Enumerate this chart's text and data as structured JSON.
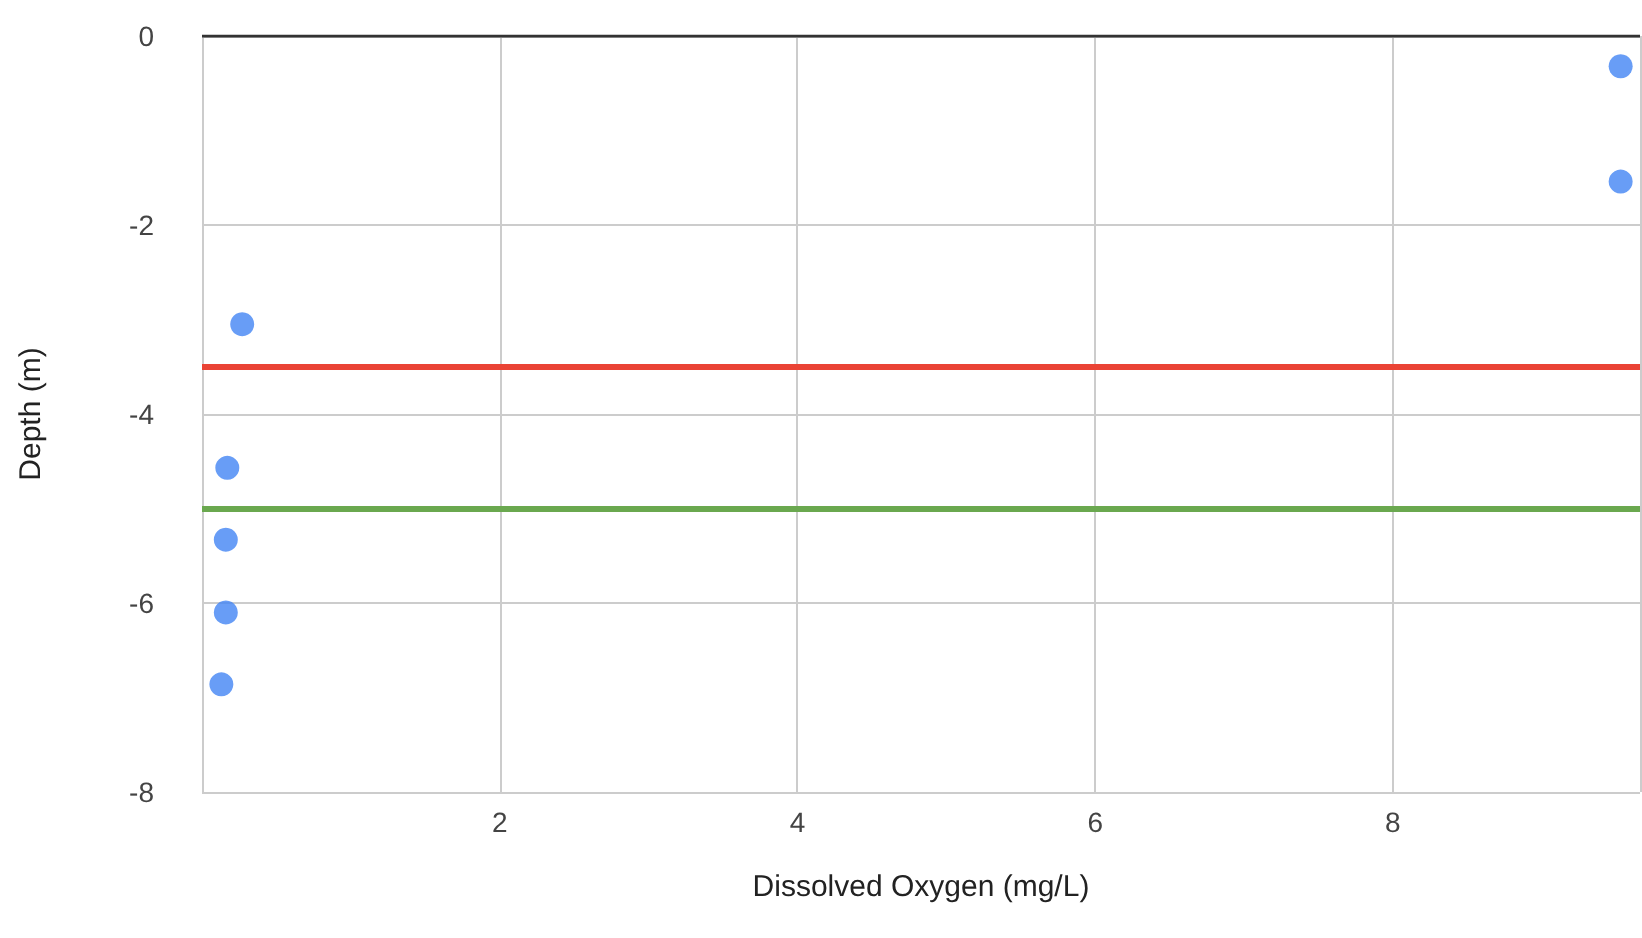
{
  "chart_data": {
    "type": "scatter",
    "xlabel": "Dissolved Oxygen (mg/L)",
    "ylabel": "Depth (m)",
    "x": [
      9.53,
      9.53,
      0.27,
      0.17,
      0.16,
      0.16,
      0.13
    ],
    "series": [
      {
        "color": "#4285f4",
        "values": [
          -0.32,
          -1.54,
          -3.05,
          -4.57,
          -5.33,
          -6.1,
          -6.86
        ]
      }
    ],
    "xlim": [
      0,
      9.66
    ],
    "xticks": [
      2,
      4,
      6,
      8
    ],
    "ylim": [
      -8,
      0
    ],
    "yticks": [
      -8,
      -6,
      -4,
      -2,
      0
    ],
    "ref_lines": [
      {
        "axis": "y",
        "value": -3.5,
        "color": "#ea4335"
      },
      {
        "axis": "y",
        "value": -5,
        "color": "#6aa84f"
      }
    ],
    "grid": true,
    "marker": "circle"
  }
}
